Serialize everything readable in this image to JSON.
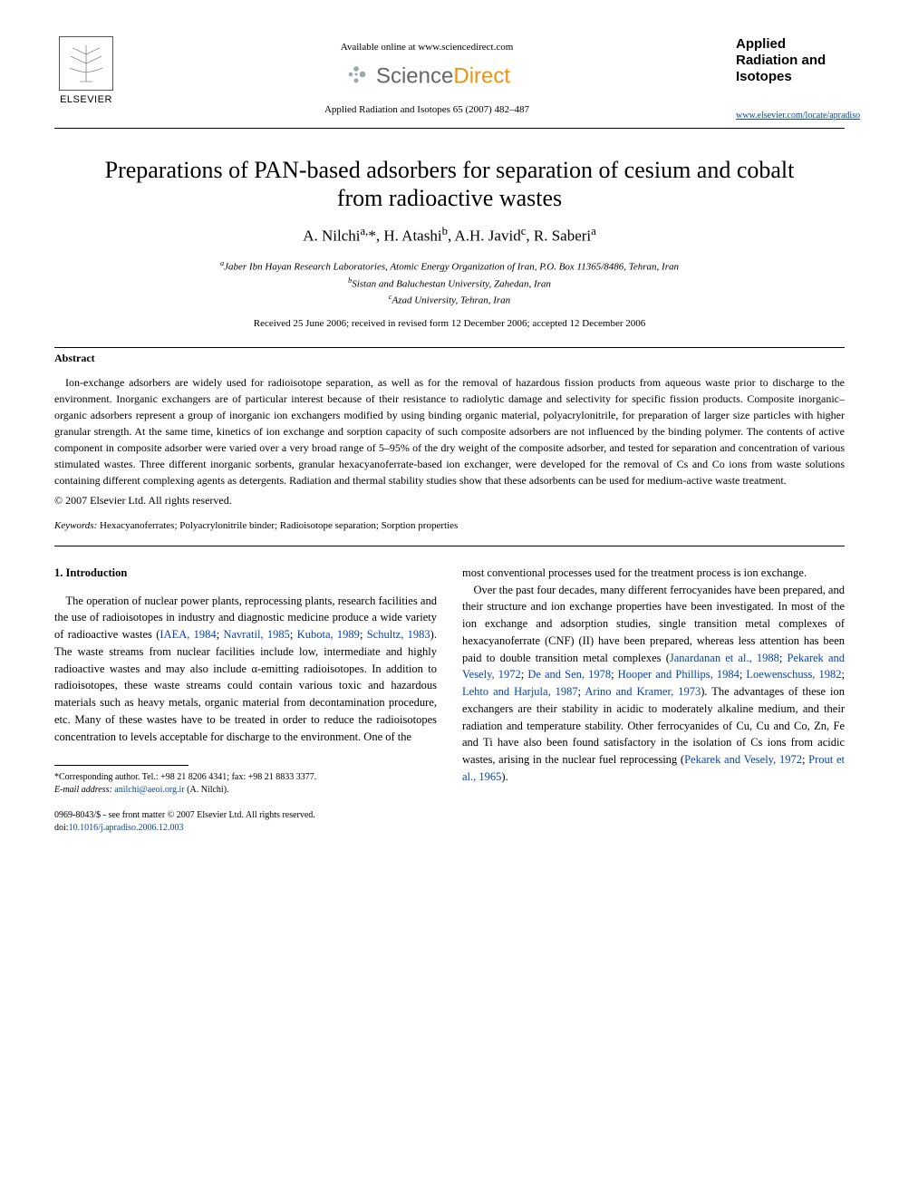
{
  "header": {
    "elsevier_label": "ELSEVIER",
    "available_text": "Available online at www.sciencedirect.com",
    "sd_text_1": "Science",
    "sd_text_2": "Direct",
    "citation": "Applied Radiation and Isotopes 65 (2007) 482–487",
    "journal_name": "Applied Radiation and Isotopes",
    "journal_link": "www.elsevier.com/locate/apradiso"
  },
  "article": {
    "title": "Preparations of PAN-based adsorbers for separation of cesium and cobalt from radioactive wastes",
    "authors_html": "A. Nilchi<sup>a,</sup>*, H. Atashi<sup>b</sup>, A.H. Javid<sup>c</sup>, R. Saberi<sup>a</sup>",
    "affiliations": [
      "<sup>a</sup>Jaber Ibn Hayan Research Laboratories, Atomic Energy Organization of Iran, P.O. Box 11365/8486, Tehran, Iran",
      "<sup>b</sup>Sistan and Baluchestan University, Zahedan, Iran",
      "<sup>c</sup>Azad University, Tehran, Iran"
    ],
    "dates": "Received 25 June 2006; received in revised form 12 December 2006; accepted 12 December 2006"
  },
  "abstract": {
    "heading": "Abstract",
    "body": "Ion-exchange adsorbers are widely used for radioisotope separation, as well as for the removal of hazardous fission products from aqueous waste prior to discharge to the environment. Inorganic exchangers are of particular interest because of their resistance to radiolytic damage and selectivity for specific fission products. Composite inorganic–organic adsorbers represent a group of inorganic ion exchangers modified by using binding organic material, polyacrylonitrile, for preparation of larger size particles with higher granular strength. At the same time, kinetics of ion exchange and sorption capacity of such composite adsorbers are not influenced by the binding polymer. The contents of active component in composite adsorber were varied over a very broad range of 5–95% of the dry weight of the composite adsorber, and tested for separation and concentration of various stimulated wastes. Three different inorganic sorbents, granular hexacyanoferrate-based ion exchanger, were developed for the removal of Cs and Co ions from waste solutions containing different complexing agents as detergents. Radiation and thermal stability studies show that these adsorbents can be used for medium-active waste treatment.",
    "copyright": "© 2007 Elsevier Ltd. All rights reserved.",
    "keywords_label": "Keywords:",
    "keywords": " Hexacyanoferrates; Polyacrylonitrile binder; Radioisotope separation; Sorption properties"
  },
  "body": {
    "section_heading": "1. Introduction",
    "col1_p1_a": "The operation of nuclear power plants, reprocessing plants, research facilities and the use of radioisotopes in industry and diagnostic medicine produce a wide variety of radioactive wastes (",
    "col1_cite1": "IAEA, 1984",
    "col1_sep1": "; ",
    "col1_cite2": "Navratil, 1985",
    "col1_sep2": "; ",
    "col1_cite3": "Kubota, 1989",
    "col1_sep3": "; ",
    "col1_cite4": "Schultz, 1983",
    "col1_p1_b": "). The waste streams from nuclear facilities include low, intermediate and highly radioactive wastes and may also include α-emitting radioisotopes. In addition to radioisotopes, these waste streams could contain various toxic and hazardous materials such as heavy metals, organic material from decontamination procedure, etc. Many of these wastes have to be treated in order to reduce the radioisotopes concentration to levels acceptable for discharge to the environment. One of the",
    "col2_p1": "most conventional processes used for the treatment process is ion exchange.",
    "col2_p2_a": "Over the past four decades, many different ferrocyanides have been prepared, and their structure and ion exchange properties have been investigated. In most of the ion exchange and adsorption studies, single transition metal complexes of hexacyanoferrate (CNF) (II) have been prepared, whereas less attention has been paid to double transition metal complexes (",
    "col2_cite1": "Janardanan et al., 1988",
    "col2_sep1": "; ",
    "col2_cite2": "Pekarek and Vesely, 1972",
    "col2_sep2": "; ",
    "col2_cite3": "De and Sen, 1978",
    "col2_sep3": "; ",
    "col2_cite4": "Hooper and Phillips, 1984",
    "col2_sep4": "; ",
    "col2_cite5": "Loewenschuss, 1982",
    "col2_sep5": "; ",
    "col2_cite6": "Lehto and Harjula, 1987",
    "col2_sep6": "; ",
    "col2_cite7": "Arino and Kramer, 1973",
    "col2_p2_b": "). The advantages of these ion exchangers are their stability in acidic to moderately alkaline medium, and their radiation and temperature stability. Other ferrocyanides of Cu, Cu and Co, Zn, Fe and Ti have also been found satisfactory in the isolation of Cs ions from acidic wastes, arising in the nuclear fuel reprocessing (",
    "col2_cite8": "Pekarek and Vesely, 1972",
    "col2_sep8": "; ",
    "col2_cite9": "Prout et al., 1965",
    "col2_p2_c": ")."
  },
  "footnote": {
    "corr": "*Corresponding author. Tel.: +98 21 8206 4341; fax: +98 21 8833 3377.",
    "email_label": "E-mail address:",
    "email": " anilchi@aeoi.org.ir",
    "email_name": " (A. Nilchi)."
  },
  "footer": {
    "line1": "0969-8043/$ - see front matter © 2007 Elsevier Ltd. All rights reserved.",
    "doi_label": "doi:",
    "doi": "10.1016/j.apradiso.2006.12.003"
  },
  "colors": {
    "link": "#0645ad",
    "sd_gray": "#666666",
    "sd_orange": "#e8950d",
    "text": "#000000",
    "bg": "#ffffff"
  }
}
